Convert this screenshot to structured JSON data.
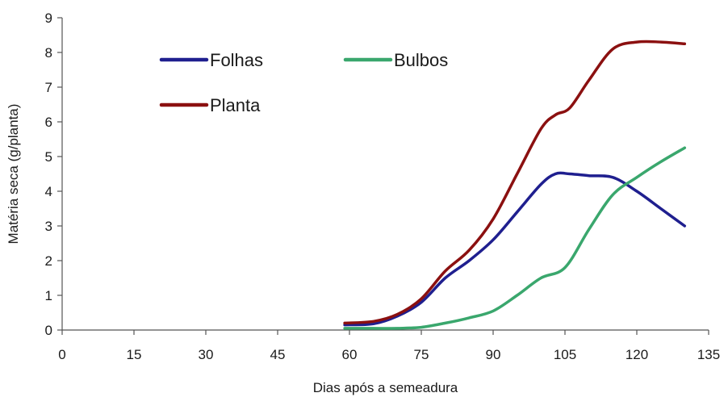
{
  "chart_data": {
    "type": "line",
    "title": "",
    "xlabel": "Dias após a semeadura",
    "ylabel": "Matéria seca (g/planta)",
    "xlim": [
      0,
      135
    ],
    "ylim": [
      0,
      9
    ],
    "xticks": [
      0,
      15,
      30,
      45,
      60,
      75,
      90,
      105,
      120,
      135
    ],
    "yticks": [
      0,
      1,
      2,
      3,
      4,
      5,
      6,
      7,
      8,
      9
    ],
    "grid": false,
    "legend_position": "top-left",
    "series": [
      {
        "name": "Folhas",
        "color": "#1f1f8f",
        "x": [
          59,
          65,
          70,
          75,
          80,
          85,
          90,
          95,
          100,
          103,
          106,
          110,
          115,
          120,
          125,
          130
        ],
        "y": [
          0.15,
          0.18,
          0.4,
          0.8,
          1.5,
          2.0,
          2.6,
          3.4,
          4.2,
          4.5,
          4.5,
          4.45,
          4.4,
          4.0,
          3.5,
          3.0
        ]
      },
      {
        "name": "Bulbos",
        "color": "#3aa76d",
        "x": [
          59,
          65,
          70,
          75,
          80,
          85,
          90,
          95,
          100,
          105,
          110,
          115,
          120,
          125,
          130
        ],
        "y": [
          0.05,
          0.05,
          0.05,
          0.08,
          0.2,
          0.35,
          0.55,
          1.0,
          1.5,
          1.8,
          2.9,
          3.9,
          4.4,
          4.85,
          5.25
        ]
      },
      {
        "name": "Planta",
        "color": "#8b1010",
        "x": [
          59,
          65,
          70,
          75,
          80,
          85,
          90,
          95,
          100,
          103,
          106,
          110,
          115,
          120,
          125,
          130
        ],
        "y": [
          0.2,
          0.25,
          0.45,
          0.9,
          1.7,
          2.3,
          3.2,
          4.5,
          5.8,
          6.2,
          6.4,
          7.2,
          8.1,
          8.3,
          8.3,
          8.25
        ]
      }
    ]
  }
}
